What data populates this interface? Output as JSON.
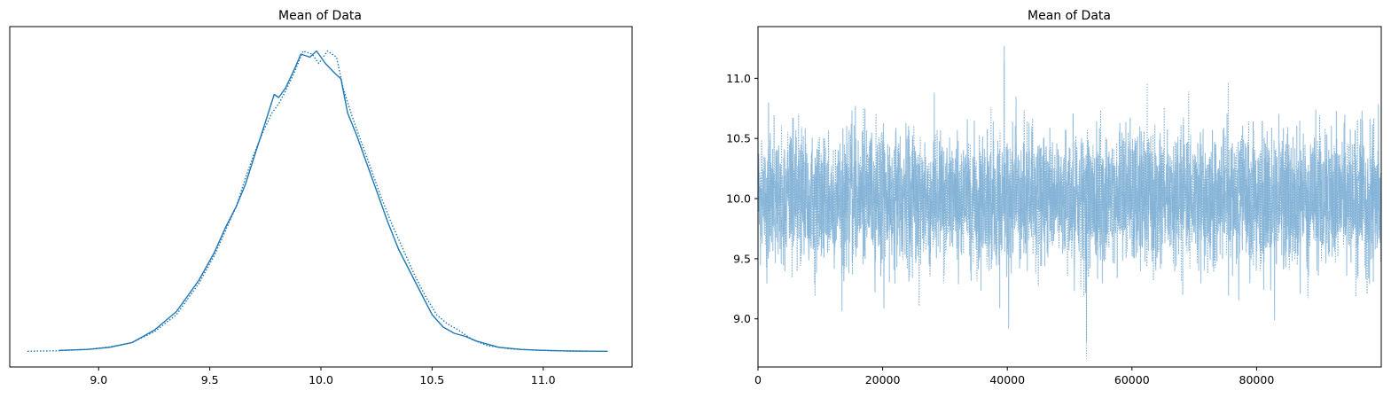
{
  "chart_data": [
    {
      "type": "line",
      "title": "Mean of Data",
      "xlabel": "",
      "ylabel": "",
      "xlim": [
        8.6,
        11.4
      ],
      "ylim": [
        0,
        1
      ],
      "x_ticks": [
        "9.0",
        "9.5",
        "10.0",
        "10.5",
        "11.0"
      ],
      "y_ticks": [],
      "color": "#1f77b4",
      "series": [
        {
          "style": "solid",
          "x": [
            8.82,
            8.95,
            9.05,
            9.15,
            9.25,
            9.35,
            9.45,
            9.52,
            9.57,
            9.62,
            9.66,
            9.7,
            9.75,
            9.79,
            9.81,
            9.84,
            9.88,
            9.91,
            9.95,
            9.98,
            10.02,
            10.06,
            10.09,
            10.12,
            10.16,
            10.2,
            10.25,
            10.3,
            10.35,
            10.4,
            10.45,
            10.5,
            10.55,
            10.6,
            10.65,
            10.7,
            10.8,
            10.9,
            11.0,
            11.1,
            11.29
          ],
          "y": [
            0.005,
            0.008,
            0.015,
            0.03,
            0.07,
            0.13,
            0.23,
            0.32,
            0.4,
            0.47,
            0.54,
            0.63,
            0.74,
            0.83,
            0.82,
            0.85,
            0.91,
            0.96,
            0.95,
            0.97,
            0.93,
            0.9,
            0.88,
            0.77,
            0.7,
            0.62,
            0.52,
            0.42,
            0.33,
            0.26,
            0.19,
            0.12,
            0.08,
            0.06,
            0.05,
            0.035,
            0.015,
            0.008,
            0.005,
            0.003,
            0.002
          ]
        },
        {
          "style": "dotted",
          "x": [
            8.68,
            8.82,
            8.95,
            9.05,
            9.15,
            9.25,
            9.35,
            9.45,
            9.52,
            9.57,
            9.62,
            9.66,
            9.7,
            9.74,
            9.78,
            9.81,
            9.84,
            9.88,
            9.92,
            9.96,
            9.99,
            10.03,
            10.07,
            10.1,
            10.14,
            10.18,
            10.22,
            10.27,
            10.32,
            10.37,
            10.42,
            10.47,
            10.52,
            10.57,
            10.62,
            10.68,
            10.75,
            10.85,
            10.95,
            11.05,
            11.2
          ],
          "y": [
            0.002,
            0.004,
            0.008,
            0.016,
            0.03,
            0.065,
            0.12,
            0.22,
            0.31,
            0.39,
            0.47,
            0.56,
            0.64,
            0.71,
            0.77,
            0.8,
            0.84,
            0.9,
            0.97,
            0.96,
            0.93,
            0.97,
            0.95,
            0.85,
            0.76,
            0.68,
            0.6,
            0.5,
            0.41,
            0.33,
            0.25,
            0.18,
            0.12,
            0.09,
            0.07,
            0.04,
            0.02,
            0.01,
            0.006,
            0.004,
            0.002
          ]
        }
      ]
    },
    {
      "type": "line",
      "title": "Mean of Data",
      "xlabel": "",
      "ylabel": "",
      "xlim": [
        0,
        100000
      ],
      "ylim": [
        8.6,
        11.43
      ],
      "x_ticks": [
        "0",
        "20000",
        "40000",
        "60000",
        "80000"
      ],
      "y_ticks": [
        "9.0",
        "9.5",
        "10.0",
        "10.5",
        "11.0"
      ],
      "color": "#7fb0d5",
      "series": [
        {
          "style": "solid",
          "n_draws": 100000,
          "center": 10.0,
          "band": [
            9.3,
            10.7
          ],
          "max": 11.27,
          "min": 8.81
        },
        {
          "style": "dotted",
          "n_draws": 100000,
          "center": 10.0,
          "band": [
            9.3,
            10.7
          ],
          "max": 11.15,
          "min": 8.67
        }
      ]
    }
  ]
}
